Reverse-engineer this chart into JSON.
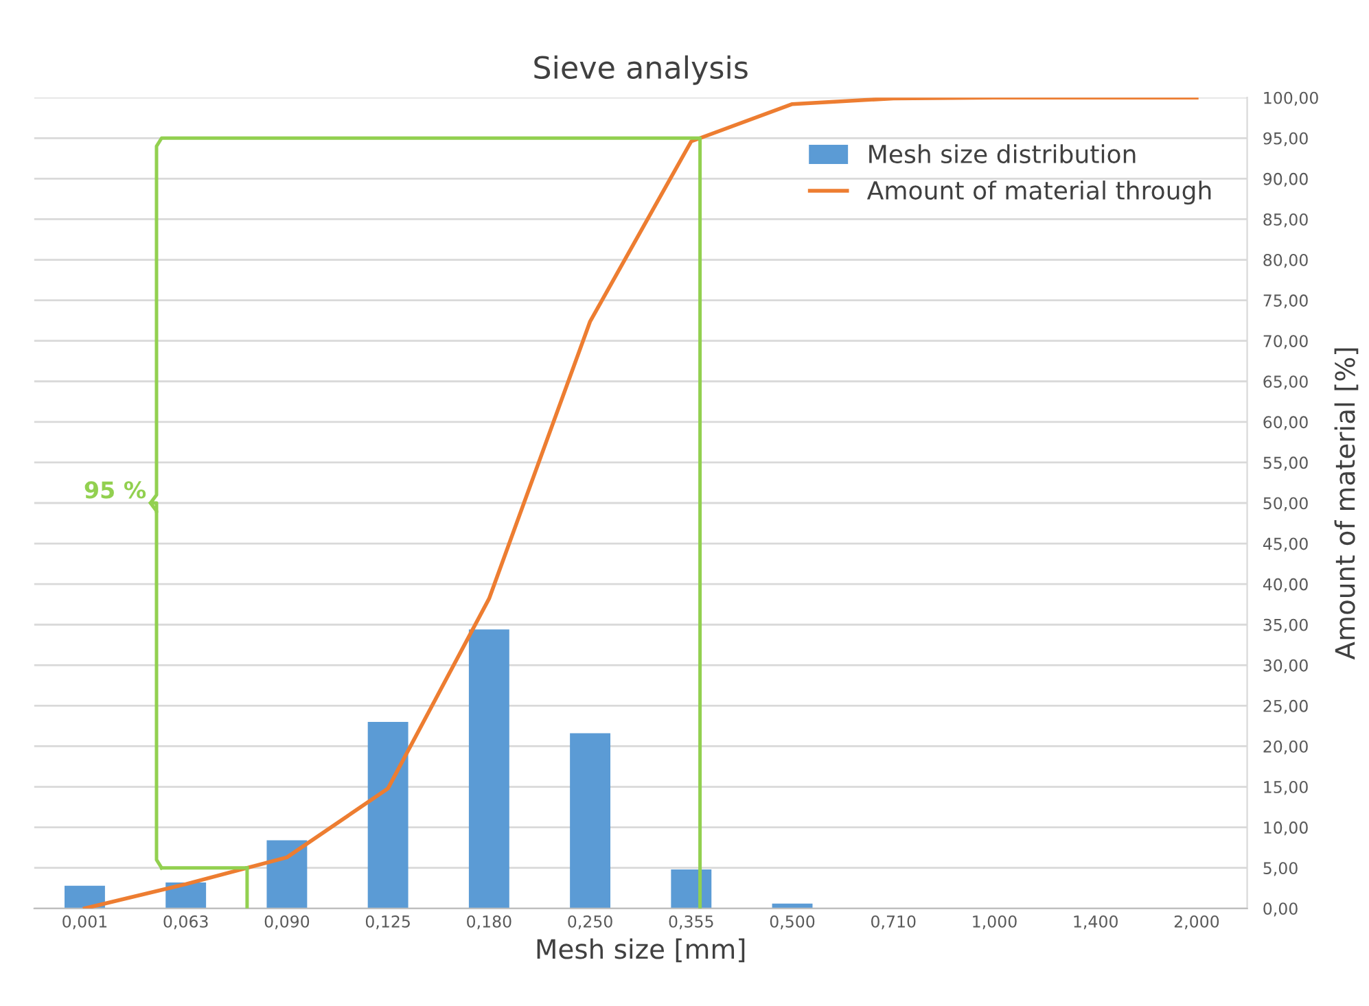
{
  "chart_data": {
    "type": "bar",
    "title": "Sieve analysis",
    "xlabel": "Mesh size [mm]",
    "ylabel": "Amount of material [%]",
    "categories": [
      "0,001",
      "0,063",
      "0,090",
      "0,125",
      "0,180",
      "0,250",
      "0,355",
      "0,500",
      "0,710",
      "1,000",
      "1,400",
      "2,000"
    ],
    "series": [
      {
        "name": "Mesh size distribution",
        "color": "#5b9bd5",
        "values": [
          2.8,
          3.2,
          8.4,
          23.0,
          34.4,
          21.6,
          4.8,
          0.6,
          0,
          0,
          0,
          0
        ]
      },
      {
        "name": "Amount of material through",
        "type": "line",
        "color": "#ed7d31",
        "values": [
          0,
          3.0,
          6.3,
          14.8,
          38.2,
          72.4,
          94.6,
          99.2,
          99.9,
          100,
          100,
          100
        ]
      }
    ],
    "ylim": [
      0,
      100
    ],
    "yticks": [
      {
        "value": 0,
        "label": "0,00"
      },
      {
        "value": 5,
        "label": "5,00"
      },
      {
        "value": 10,
        "label": "10,00"
      },
      {
        "value": 15,
        "label": "15,00"
      },
      {
        "value": 20,
        "label": "20,00"
      },
      {
        "value": 25,
        "label": "25,00"
      },
      {
        "value": 30,
        "label": "30,00"
      },
      {
        "value": 35,
        "label": "35,00"
      },
      {
        "value": 40,
        "label": "40,00"
      },
      {
        "value": 45,
        "label": "45,00"
      },
      {
        "value": 50,
        "label": "50,00"
      },
      {
        "value": 55,
        "label": "55,00"
      },
      {
        "value": 60,
        "label": "60,00"
      },
      {
        "value": 65,
        "label": "65,00"
      },
      {
        "value": 70,
        "label": "70,00"
      },
      {
        "value": 75,
        "label": "75,00"
      },
      {
        "value": 80,
        "label": "80,00"
      },
      {
        "value": 85,
        "label": "85,00"
      },
      {
        "value": 90,
        "label": "90,00"
      },
      {
        "value": 95,
        "label": "95,00"
      },
      {
        "value": 100,
        "label": "100,00"
      }
    ],
    "annotations": [
      "95 %"
    ],
    "ref_lines": [
      {
        "axis": "y",
        "value": 95,
        "color": "#92d050"
      }
    ],
    "grid": "y",
    "legend": "top right"
  }
}
